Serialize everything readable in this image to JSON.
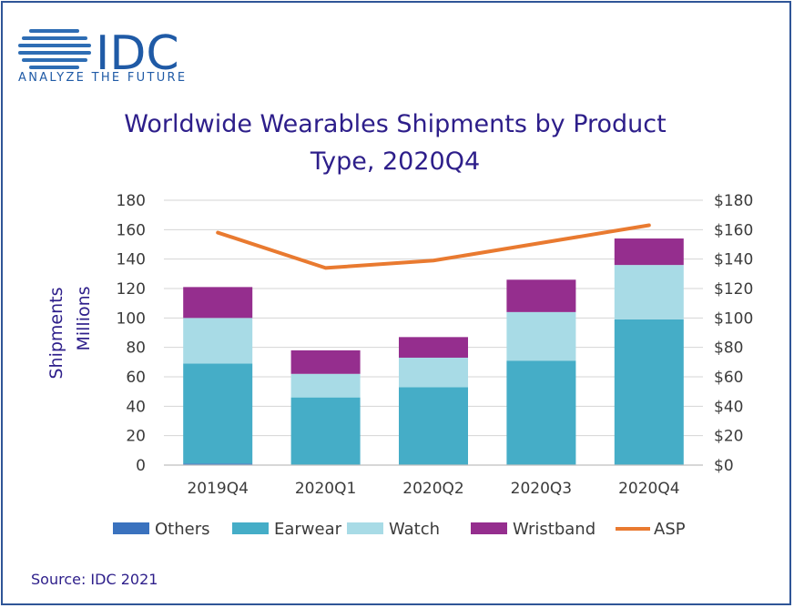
{
  "logo": {
    "wordmark": "IDC",
    "tagline": "ANALYZE THE FUTURE"
  },
  "source": "Source: IDC 2021",
  "chart_data": {
    "type": "bar",
    "stacked": true,
    "title_lines": [
      "Worldwide Wearables Shipments by Product",
      "Type, 2020Q4"
    ],
    "ylabel_lines": [
      "Shipments",
      "Millions"
    ],
    "categories": [
      "2019Q4",
      "2020Q1",
      "2020Q2",
      "2020Q3",
      "2020Q4"
    ],
    "series": [
      {
        "name": "Others",
        "kind": "bar",
        "color": "#3A72BE",
        "values": [
          1,
          0,
          0,
          0,
          0
        ]
      },
      {
        "name": "Earwear",
        "kind": "bar",
        "color": "#45ADC7",
        "values": [
          68,
          46,
          53,
          71,
          99
        ]
      },
      {
        "name": "Watch",
        "kind": "bar",
        "color": "#A8DBE6",
        "values": [
          31,
          16,
          20,
          33,
          37
        ]
      },
      {
        "name": "Wristband",
        "kind": "bar",
        "color": "#952E8E",
        "values": [
          21,
          16,
          14,
          22,
          18
        ]
      },
      {
        "name": "ASP",
        "kind": "line",
        "axis": "right",
        "color": "#E97A30",
        "values": [
          158,
          134,
          139,
          151,
          163
        ]
      }
    ],
    "ylim": [
      0,
      180
    ],
    "y_ticks": [
      "0",
      "20",
      "40",
      "60",
      "80",
      "100",
      "120",
      "140",
      "160",
      "180"
    ],
    "y2lim": [
      0,
      180
    ],
    "y2_ticks": [
      "$0",
      "$20",
      "$40",
      "$60",
      "$80",
      "$100",
      "$120",
      "$140",
      "$160",
      "$180"
    ],
    "grid": true,
    "legend": "bottom",
    "colors": {
      "title": "#2D1E8A",
      "axis_text": "#3B3B3B",
      "grid": "#D4D4D4",
      "border": "#2F5597"
    }
  }
}
